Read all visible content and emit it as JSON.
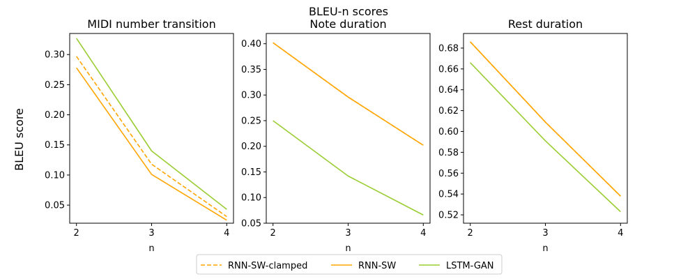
{
  "figure": {
    "suptitle": "BLEU-n scores",
    "ylabel": "BLEU score"
  },
  "legend": {
    "placement": "bottom-center",
    "entries": [
      {
        "name": "RNN-SW-clamped",
        "color": "#FFA500",
        "style": "dashed"
      },
      {
        "name": "RNN-SW",
        "color": "#FFA500",
        "style": "solid"
      },
      {
        "name": "LSTM-GAN",
        "color": "#9ACD32",
        "style": "solid"
      }
    ]
  },
  "chart_data": [
    {
      "type": "line",
      "title": "MIDI number transition",
      "xlabel": "n",
      "ylabel": "BLEU score",
      "x": [
        2,
        3,
        4
      ],
      "xticks": [
        "2",
        "3",
        "4"
      ],
      "yticks": [
        "0.05",
        "0.10",
        "0.15",
        "0.20",
        "0.25",
        "0.30"
      ],
      "ytick_values": [
        0.05,
        0.1,
        0.15,
        0.2,
        0.25,
        0.3
      ],
      "ylim": [
        0.02,
        0.335
      ],
      "grid": false,
      "series": [
        {
          "name": "RNN-SW-clamped",
          "values": [
            0.297,
            0.118,
            0.031
          ],
          "color": "#FFA500",
          "style": "dashed"
        },
        {
          "name": "RNN-SW",
          "values": [
            0.278,
            0.101,
            0.025
          ],
          "color": "#FFA500",
          "style": "solid"
        },
        {
          "name": "LSTM-GAN",
          "values": [
            0.327,
            0.14,
            0.043
          ],
          "color": "#9ACD32",
          "style": "solid"
        }
      ]
    },
    {
      "type": "line",
      "title": "Note duration",
      "xlabel": "n",
      "ylabel": "",
      "x": [
        2,
        3,
        4
      ],
      "xticks": [
        "2",
        "3",
        "4"
      ],
      "yticks": [
        "0.05",
        "0.10",
        "0.15",
        "0.20",
        "0.25",
        "0.30",
        "0.35",
        "0.40"
      ],
      "ytick_values": [
        0.05,
        0.1,
        0.15,
        0.2,
        0.25,
        0.3,
        0.35,
        0.4
      ],
      "ylim": [
        0.05,
        0.42
      ],
      "grid": false,
      "series": [
        {
          "name": "RNN-SW-clamped",
          "values": [
            0.402,
            0.296,
            0.202
          ],
          "color": "#FFA500",
          "style": "dashed"
        },
        {
          "name": "RNN-SW",
          "values": [
            0.402,
            0.296,
            0.202
          ],
          "color": "#FFA500",
          "style": "solid"
        },
        {
          "name": "LSTM-GAN",
          "values": [
            0.25,
            0.142,
            0.066
          ],
          "color": "#9ACD32",
          "style": "solid"
        }
      ]
    },
    {
      "type": "line",
      "title": "Rest duration",
      "xlabel": "n",
      "ylabel": "",
      "x": [
        2,
        3,
        4
      ],
      "xticks": [
        "2",
        "3",
        "4"
      ],
      "yticks": [
        "0.52",
        "0.54",
        "0.56",
        "0.58",
        "0.60",
        "0.62",
        "0.64",
        "0.66",
        "0.68"
      ],
      "ytick_values": [
        0.52,
        0.54,
        0.56,
        0.58,
        0.6,
        0.62,
        0.64,
        0.66,
        0.68
      ],
      "ylim": [
        0.512,
        0.694
      ],
      "grid": false,
      "series": [
        {
          "name": "RNN-SW-clamped",
          "values": [
            0.686,
            0.609,
            0.538
          ],
          "color": "#FFA500",
          "style": "dashed"
        },
        {
          "name": "RNN-SW",
          "values": [
            0.686,
            0.609,
            0.538
          ],
          "color": "#FFA500",
          "style": "solid"
        },
        {
          "name": "LSTM-GAN",
          "values": [
            0.666,
            0.591,
            0.523
          ],
          "color": "#9ACD32",
          "style": "solid"
        }
      ]
    }
  ]
}
